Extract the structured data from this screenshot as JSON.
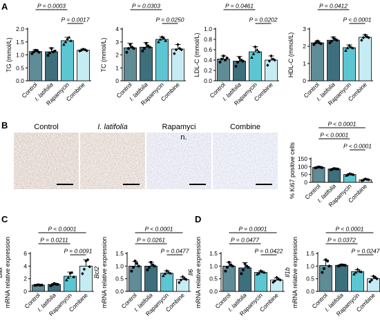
{
  "colors": {
    "control": "#5f8c96",
    "latifolia": "#3d6f7d",
    "rapamycin": "#5cc6d3",
    "combine": "#c6ecf3"
  },
  "panels": {
    "A": "A",
    "B": "B",
    "C": "C",
    "D": "D"
  },
  "photos": {
    "labels": [
      "Control",
      "I. latifolia",
      "Rapamyci",
      "Combine"
    ],
    "rapamycin_wrap": "n."
  },
  "chart_data": [
    {
      "id": "TG",
      "type": "bar",
      "panel": "A",
      "ylabel": "TG (mmol/L)",
      "ylim": [
        0,
        2.0
      ],
      "yticks": [
        "0.0",
        "0.5",
        "1.0",
        "1.5",
        "2.0"
      ],
      "categories": [
        "Control",
        "I. latifolia",
        "Rapamycin",
        "Combine"
      ],
      "values": [
        1.13,
        1.12,
        1.55,
        1.18
      ],
      "errors": [
        0.08,
        0.15,
        0.13,
        0.05
      ],
      "points": [
        [
          1.05,
          1.12,
          1.18,
          1.15,
          1.1
        ],
        [
          0.98,
          1.08,
          1.25,
          1.12,
          1.15
        ],
        [
          1.4,
          1.5,
          1.62,
          1.68,
          1.55
        ],
        [
          1.15,
          1.18,
          1.22,
          1.2,
          1.16
        ]
      ],
      "comparisons": [
        {
          "from": 0,
          "to": 2,
          "label": "P = 0.0003"
        },
        {
          "from": 2,
          "to": 3,
          "label": "P = 0.0017"
        }
      ]
    },
    {
      "id": "TC",
      "type": "bar",
      "panel": "A",
      "ylabel": "TC (mmol/L)",
      "ylim": [
        0,
        4
      ],
      "yticks": [
        "0",
        "1",
        "2",
        "3",
        "4"
      ],
      "categories": [
        "Control",
        "I. latifolia",
        "Rapamycin",
        "Combine"
      ],
      "values": [
        2.55,
        2.6,
        3.2,
        2.45
      ],
      "errors": [
        0.35,
        0.35,
        0.2,
        0.35
      ],
      "points": [
        [
          2.2,
          2.5,
          2.8,
          2.6,
          2.5
        ],
        [
          2.3,
          2.5,
          2.9,
          2.7,
          2.6
        ],
        [
          3.0,
          3.2,
          3.4,
          3.3,
          3.1
        ],
        [
          2.1,
          2.4,
          2.8,
          2.5,
          2.4
        ]
      ],
      "comparisons": [
        {
          "from": 0,
          "to": 2,
          "label": "P = 0.0303"
        },
        {
          "from": 2,
          "to": 3,
          "label": "P = 0.0250"
        }
      ]
    },
    {
      "id": "LDL",
      "type": "bar",
      "panel": "A",
      "ylabel": "LDL-C (mmol/L)",
      "ylim": [
        0,
        1.0
      ],
      "yticks": [
        "0.0",
        "0.2",
        "0.4",
        "0.6",
        "0.8",
        "1.0"
      ],
      "categories": [
        "Control",
        "I. latifolia",
        "Rapamycin",
        "Combine"
      ],
      "values": [
        0.42,
        0.38,
        0.56,
        0.4
      ],
      "errors": [
        0.06,
        0.09,
        0.1,
        0.08
      ],
      "points": [
        [
          0.36,
          0.42,
          0.48,
          0.4,
          0.44
        ],
        [
          0.28,
          0.36,
          0.45,
          0.4,
          0.38
        ],
        [
          0.45,
          0.52,
          0.66,
          0.6,
          0.56
        ],
        [
          0.3,
          0.38,
          0.48,
          0.42,
          0.4
        ]
      ],
      "comparisons": [
        {
          "from": 0,
          "to": 2,
          "label": "P = 0.0461"
        },
        {
          "from": 2,
          "to": 3,
          "label": "P = 0.0202"
        }
      ]
    },
    {
      "id": "HDL",
      "type": "bar",
      "panel": "A",
      "ylabel": "HDL-C (mmol/L)",
      "ylim": [
        0,
        3
      ],
      "yticks": [
        "0",
        "1",
        "2",
        "3"
      ],
      "categories": [
        "Control",
        "I. latifolia",
        "Rapamycin",
        "Combine"
      ],
      "values": [
        2.2,
        2.35,
        1.92,
        2.52
      ],
      "errors": [
        0.12,
        0.18,
        0.16,
        0.15
      ],
      "points": [
        [
          2.1,
          2.2,
          2.3,
          2.2,
          2.15
        ],
        [
          2.2,
          2.3,
          2.5,
          2.4,
          2.35
        ],
        [
          1.75,
          1.9,
          2.05,
          1.95,
          1.9
        ],
        [
          2.35,
          2.5,
          2.65,
          2.55,
          2.5
        ]
      ],
      "comparisons": [
        {
          "from": 0,
          "to": 2,
          "label": "P = 0.0412"
        },
        {
          "from": 2,
          "to": 3,
          "label": "P < 0.0001"
        }
      ]
    },
    {
      "id": "Ki67",
      "type": "bar",
      "panel": "B",
      "ylabel": "% Ki67 positive cells",
      "ylim": [
        0,
        150
      ],
      "yticks": [
        "0",
        "50",
        "100",
        "150"
      ],
      "categories": [
        "Control",
        "I. latifolia",
        "Rapamycin",
        "Combine"
      ],
      "values": [
        95,
        85,
        50,
        16
      ],
      "errors": [
        3,
        4,
        6,
        6
      ],
      "points": [
        [
          92,
          95,
          98,
          96,
          94
        ],
        [
          80,
          84,
          88,
          86,
          85
        ],
        [
          44,
          48,
          56,
          52,
          50
        ],
        [
          10,
          14,
          22,
          18,
          16
        ]
      ],
      "comparisons": [
        {
          "from": 0,
          "to": 3,
          "label": "P < 0.0001"
        },
        {
          "from": 0,
          "to": 2,
          "label": "P < 0.0001"
        },
        {
          "from": 2,
          "to": 3,
          "label": "P < 0.0001"
        }
      ]
    },
    {
      "id": "Bax",
      "type": "bar",
      "panel": "C",
      "ylabel": "mRNA relative expression",
      "gene": "Bax",
      "ylim": [
        0,
        6
      ],
      "yticks": [
        "0",
        "2",
        "4",
        "6"
      ],
      "categories": [
        "Control",
        "I. latifolia",
        "Rapamycin",
        "Combine"
      ],
      "values": [
        1.0,
        1.1,
        2.4,
        4.0
      ],
      "errors": [
        0.05,
        0.15,
        0.65,
        1.0
      ],
      "points": [
        [
          0.95,
          1.0,
          1.05,
          1.0,
          1.0
        ],
        [
          0.9,
          1.05,
          1.25,
          1.15,
          1.1
        ],
        [
          1.8,
          2.2,
          2.9,
          3.0,
          2.3
        ],
        [
          2.8,
          3.5,
          4.8,
          5.0,
          3.9
        ]
      ],
      "comparisons": [
        {
          "from": 0,
          "to": 3,
          "label": "P < 0.0001"
        },
        {
          "from": 0,
          "to": 2,
          "label": "P = 0.0211"
        },
        {
          "from": 2,
          "to": 3,
          "label": "P = 0.0091"
        }
      ]
    },
    {
      "id": "Bcl2",
      "type": "bar",
      "panel": "C",
      "ylabel": "mRNA relative expression",
      "gene": "Bcl2",
      "ylim": [
        0,
        1.5
      ],
      "yticks": [
        "0.0",
        "0.5",
        "1.0",
        "1.5"
      ],
      "categories": [
        "Control",
        "I. latifolia",
        "Rapamycin",
        "Combine"
      ],
      "values": [
        1.0,
        1.0,
        0.72,
        0.47
      ],
      "errors": [
        0.18,
        0.15,
        0.1,
        0.1
      ],
      "points": [
        [
          0.8,
          0.95,
          1.2,
          1.1,
          1.0
        ],
        [
          0.85,
          0.95,
          1.15,
          1.05,
          1.0
        ],
        [
          0.62,
          0.7,
          0.82,
          0.75,
          0.72
        ],
        [
          0.35,
          0.45,
          0.58,
          0.5,
          0.47
        ]
      ],
      "comparisons": [
        {
          "from": 0,
          "to": 3,
          "label": "P < 0.0001"
        },
        {
          "from": 0,
          "to": 2,
          "label": "P = 0.0261"
        },
        {
          "from": 2,
          "to": 3,
          "label": "P = 0.0477"
        }
      ]
    },
    {
      "id": "Il6",
      "type": "bar",
      "panel": "D",
      "ylabel": "mRNA relative expression",
      "gene": "Il6",
      "ylim": [
        0,
        1.5
      ],
      "yticks": [
        "0.0",
        "0.5",
        "1.0",
        "1.5"
      ],
      "categories": [
        "Control",
        "I. latifolia",
        "Rapamycin",
        "Combine"
      ],
      "values": [
        1.0,
        0.93,
        0.75,
        0.45
      ],
      "errors": [
        0.15,
        0.2,
        0.06,
        0.08
      ],
      "points": [
        [
          0.8,
          0.95,
          1.15,
          1.05,
          1.0
        ],
        [
          0.7,
          0.85,
          1.1,
          1.0,
          0.95
        ],
        [
          0.68,
          0.72,
          0.82,
          0.78,
          0.75
        ],
        [
          0.36,
          0.42,
          0.55,
          0.48,
          0.45
        ]
      ],
      "comparisons": [
        {
          "from": 0,
          "to": 3,
          "label": "P = 0.0001"
        },
        {
          "from": 0,
          "to": 2,
          "label": "P = 0.0477"
        },
        {
          "from": 2,
          "to": 3,
          "label": "P = 0.0422"
        }
      ]
    },
    {
      "id": "Il1b",
      "type": "bar",
      "panel": "D",
      "ylabel": "mRNA relative expression",
      "gene": "Il1b",
      "ylim": [
        0,
        1.5
      ],
      "yticks": [
        "0.0",
        "0.5",
        "1.0",
        "1.5"
      ],
      "categories": [
        "Control",
        "I. latifolia",
        "Rapamycin",
        "Combine"
      ],
      "values": [
        1.02,
        1.03,
        0.78,
        0.5
      ],
      "errors": [
        0.22,
        0.04,
        0.08,
        0.1
      ],
      "points": [
        [
          0.75,
          0.9,
          1.25,
          1.2,
          1.0
        ],
        [
          1.0,
          1.02,
          1.05,
          1.04,
          1.03
        ],
        [
          0.68,
          0.75,
          0.88,
          0.8,
          0.78
        ],
        [
          0.38,
          0.45,
          0.6,
          0.55,
          0.5
        ]
      ],
      "comparisons": [
        {
          "from": 0,
          "to": 3,
          "label": "P < 0.0001"
        },
        {
          "from": 0,
          "to": 2,
          "label": "P = 0.0372"
        },
        {
          "from": 2,
          "to": 3,
          "label": "P = 0.0247"
        }
      ]
    }
  ]
}
